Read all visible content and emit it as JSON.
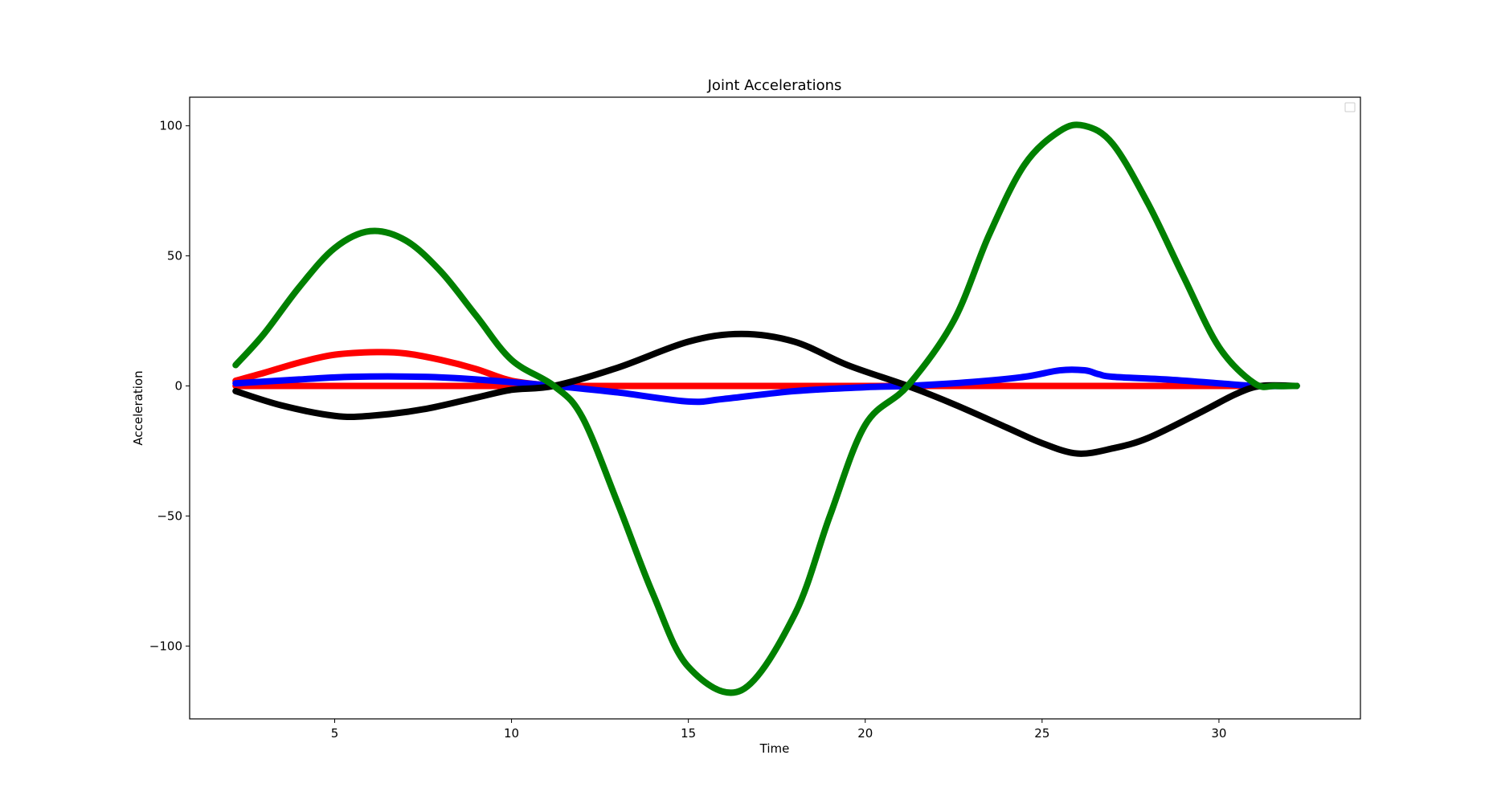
{
  "chart_data": {
    "type": "line",
    "title": "Joint Accelerations",
    "xlabel": "Time",
    "ylabel": "Acceleration",
    "xlim": [
      0.9,
      34.0
    ],
    "ylim": [
      -128,
      111
    ],
    "xticks": [
      5,
      10,
      15,
      20,
      25,
      30
    ],
    "xtick_labels": [
      "5",
      "10",
      "15",
      "20",
      "25",
      "30"
    ],
    "yticks": [
      -100,
      -50,
      0,
      50,
      100
    ],
    "ytick_labels": [
      "−100",
      "−50",
      "0",
      "50",
      "100"
    ],
    "grid": false,
    "legend": "top-right (empty)",
    "series": [
      {
        "color": "#ff0000",
        "x": [
          2.2,
          3.0,
          4.0,
          5.0,
          6.2,
          7.0,
          8.0,
          9.0,
          10.0,
          11.2
        ],
        "y": [
          2,
          5,
          9,
          12,
          13,
          12.5,
          10,
          6.5,
          2,
          0
        ]
      },
      {
        "color": "#ff0000",
        "x": [
          2.2,
          32.2
        ],
        "y": [
          0,
          0
        ]
      },
      {
        "color": "#0000ff",
        "x": [
          2.2,
          4.0,
          5.5,
          7.5,
          9.0,
          11.2,
          13.0,
          15.0,
          16.0,
          18.0,
          20.0,
          21.2,
          23.0,
          24.5,
          25.5,
          26.2,
          26.6,
          27.0,
          28.5,
          30.0,
          31.0,
          32.2
        ],
        "y": [
          1,
          2.5,
          3.5,
          3.5,
          2.5,
          0,
          -2.5,
          -6,
          -5,
          -2,
          -0.5,
          0,
          1.5,
          3.5,
          6,
          6,
          4.5,
          3.5,
          2.5,
          1,
          0,
          0
        ]
      },
      {
        "color": "#000000",
        "x": [
          2.2,
          3.5,
          5.0,
          6.0,
          7.5,
          9.0,
          10.0,
          11.2,
          13.0,
          15.0,
          16.5,
          18.0,
          19.5,
          21.2,
          22.5,
          24.0,
          25.0,
          26.0,
          27.0,
          28.0,
          29.5,
          30.5,
          31.2,
          32.2
        ],
        "y": [
          -2,
          -7.5,
          -11.5,
          -11.5,
          -9,
          -4.5,
          -1.5,
          0,
          7,
          17,
          20,
          17,
          8,
          0,
          -7,
          -16,
          -22,
          -26,
          -24,
          -20,
          -10,
          -3,
          0,
          0
        ]
      },
      {
        "color": "#008000",
        "x": [
          2.2,
          3.0,
          4.0,
          5.0,
          6.0,
          7.0,
          8.0,
          9.0,
          10.0,
          11.2,
          12.0,
          13.0,
          14.0,
          15.0,
          16.5,
          18.0,
          19.0,
          20.0,
          21.2,
          22.5,
          23.5,
          24.5,
          25.5,
          26.2,
          27.0,
          28.0,
          29.0,
          30.0,
          31.0,
          31.6,
          32.2
        ],
        "y": [
          8,
          20,
          38,
          53,
          59.5,
          56,
          44,
          27,
          10,
          0,
          -12,
          -45,
          -80,
          -108,
          -117,
          -88,
          -50,
          -15,
          0,
          25,
          58,
          85,
          98,
          100,
          93,
          70,
          42,
          15,
          1,
          0,
          0
        ]
      }
    ]
  }
}
